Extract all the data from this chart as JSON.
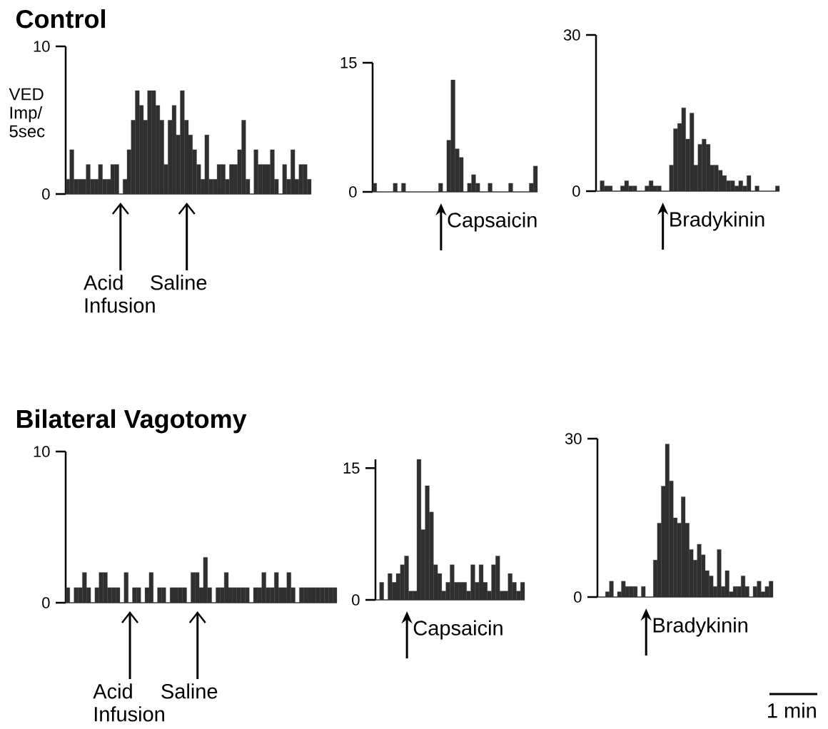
{
  "chart_data": [
    {
      "type": "bar",
      "title": "Control",
      "ylabel": "VED Imp/ 5sec",
      "color": "#2f2f2f",
      "ylim": [
        0,
        10
      ],
      "yticks": [
        0,
        10
      ],
      "tick_labels": "y",
      "categories": [
        null,
        null,
        null,
        null,
        null,
        null,
        null,
        null,
        null,
        null,
        null,
        null,
        null,
        null,
        null,
        null,
        null,
        null,
        null,
        null,
        null,
        null,
        null,
        null,
        null,
        null,
        null,
        null,
        null,
        null,
        null,
        null,
        null,
        null,
        null,
        null,
        null,
        null,
        null,
        null,
        null,
        null,
        null,
        null,
        null,
        null,
        null,
        null,
        null,
        null,
        null,
        null,
        null,
        null,
        null,
        null,
        null,
        null,
        null,
        null
      ],
      "values": [
        1,
        3,
        1,
        1,
        1,
        2,
        1,
        1,
        2,
        1,
        1,
        2,
        2,
        0,
        1,
        3,
        5,
        7,
        6,
        5,
        7,
        7,
        6,
        5,
        2,
        5,
        6,
        4,
        7,
        5,
        4,
        3,
        2,
        1,
        4,
        1,
        1,
        2,
        2,
        1,
        2,
        2,
        3,
        5,
        1,
        0,
        3,
        2,
        2,
        2,
        3,
        1,
        0,
        2,
        1,
        3,
        1,
        2,
        2,
        1
      ],
      "annotations": [
        "Acid Infusion",
        "Saline"
      ]
    },
    {
      "type": "bar",
      "color": "#2f2f2f",
      "ylim": [
        0,
        15
      ],
      "yticks": [
        0,
        15
      ],
      "tick_labels": "y",
      "categories": [
        null,
        null,
        null,
        null,
        null,
        null,
        null,
        null,
        null,
        null,
        null,
        null,
        null,
        null,
        null,
        null,
        null,
        null,
        null,
        null,
        null,
        null,
        null,
        null,
        null,
        null,
        null,
        null,
        null,
        null,
        null,
        null,
        null,
        null,
        null,
        null,
        null,
        null,
        null,
        null
      ],
      "values": [
        1,
        0,
        0,
        0,
        0,
        1,
        0,
        1,
        0,
        0,
        0,
        0,
        0,
        0,
        0,
        0,
        1,
        0,
        6,
        13,
        5,
        4,
        0,
        1,
        2,
        1,
        0,
        0,
        1,
        0,
        0,
        0,
        0,
        1,
        0,
        0,
        0,
        0,
        1,
        3
      ],
      "annotations": [
        "Capsaicin"
      ]
    },
    {
      "type": "bar",
      "color": "#2f2f2f",
      "ylim": [
        0,
        30
      ],
      "yticks": [
        0,
        30
      ],
      "tick_labels": "y",
      "categories": [
        null,
        null,
        null,
        null,
        null,
        null,
        null,
        null,
        null,
        null,
        null,
        null,
        null,
        null,
        null,
        null,
        null,
        null,
        null,
        null,
        null,
        null,
        null,
        null,
        null,
        null,
        null,
        null,
        null,
        null,
        null,
        null,
        null,
        null,
        null,
        null,
        null,
        null,
        null,
        null,
        null,
        null,
        null,
        null,
        null
      ],
      "values": [
        0,
        2,
        1,
        1,
        0,
        0,
        1,
        2,
        1,
        1,
        0,
        0,
        1,
        2,
        1,
        1,
        0,
        0,
        5,
        12,
        13,
        16,
        10,
        15,
        5,
        9,
        10,
        9,
        5,
        5,
        4,
        3,
        2,
        2,
        1,
        2,
        1,
        3,
        0,
        1,
        0,
        0,
        0,
        0,
        1
      ],
      "annotations": [
        "Bradykinin"
      ]
    },
    {
      "type": "bar",
      "title": "Bilateral Vagotomy",
      "color": "#2f2f2f",
      "ylim": [
        0,
        10
      ],
      "yticks": [
        0,
        10
      ],
      "tick_labels": "y",
      "categories": [
        null,
        null,
        null,
        null,
        null,
        null,
        null,
        null,
        null,
        null,
        null,
        null,
        null,
        null,
        null,
        null,
        null,
        null,
        null,
        null,
        null,
        null,
        null,
        null,
        null,
        null,
        null,
        null,
        null,
        null,
        null,
        null,
        null,
        null,
        null,
        null,
        null,
        null,
        null,
        null,
        null,
        null,
        null,
        null,
        null,
        null,
        null,
        null,
        null,
        null,
        null,
        null,
        null,
        null,
        null,
        null,
        null,
        null,
        null,
        null,
        null,
        null,
        null,
        null,
        null
      ],
      "values": [
        1,
        0,
        1,
        1,
        2,
        1,
        0,
        1,
        2,
        2,
        1,
        1,
        1,
        0,
        2,
        0,
        1,
        1,
        0,
        1,
        2,
        0,
        1,
        1,
        0,
        1,
        1,
        1,
        1,
        0,
        2,
        2,
        1,
        3,
        1,
        0,
        1,
        1,
        2,
        1,
        1,
        1,
        1,
        1,
        0,
        1,
        1,
        2,
        1,
        1,
        2,
        1,
        1,
        2,
        1,
        0,
        1,
        1,
        1,
        1,
        1,
        1,
        1,
        1,
        1
      ],
      "annotations": [
        "Acid Infusion",
        "Saline"
      ]
    },
    {
      "type": "bar",
      "color": "#2f2f2f",
      "ylim": [
        0,
        16
      ],
      "yticks": [
        0,
        15
      ],
      "tick_labels": "y",
      "categories": [
        null,
        null,
        null,
        null,
        null,
        null,
        null,
        null,
        null,
        null,
        null,
        null,
        null,
        null,
        null,
        null,
        null,
        null,
        null,
        null,
        null,
        null,
        null,
        null,
        null,
        null,
        null,
        null,
        null,
        null,
        null,
        null,
        null,
        null,
        null,
        null
      ],
      "values": [
        0,
        2,
        0,
        3,
        2,
        3,
        4,
        5,
        1,
        1,
        16,
        8,
        13,
        10,
        4,
        3,
        1,
        2,
        4,
        2,
        2,
        2,
        1,
        4,
        2,
        4,
        2,
        1,
        4,
        5,
        1,
        1,
        3,
        2,
        1,
        2
      ],
      "annotations": [
        "Capsaicin"
      ]
    },
    {
      "type": "bar",
      "color": "#2f2f2f",
      "ylim": [
        0,
        30
      ],
      "yticks": [
        0,
        30
      ],
      "tick_labels": "y",
      "categories": [
        null,
        null,
        null,
        null,
        null,
        null,
        null,
        null,
        null,
        null,
        null,
        null,
        null,
        null,
        null,
        null,
        null,
        null,
        null,
        null,
        null,
        null,
        null,
        null,
        null,
        null,
        null,
        null,
        null,
        null,
        null,
        null,
        null,
        null,
        null,
        null,
        null,
        null,
        null,
        null,
        null,
        null,
        null,
        null
      ],
      "values": [
        0,
        0,
        1,
        3,
        0,
        1,
        3,
        2,
        2,
        2,
        0,
        2,
        0,
        0,
        7,
        14,
        21,
        29,
        22,
        15,
        14,
        19,
        14,
        9,
        7,
        10,
        8,
        5,
        4,
        2,
        9,
        2,
        5,
        1,
        2,
        2,
        4,
        2,
        0,
        2,
        3,
        1,
        2,
        3
      ],
      "annotations": [
        "Bradykinin",
        "1 min"
      ]
    }
  ]
}
